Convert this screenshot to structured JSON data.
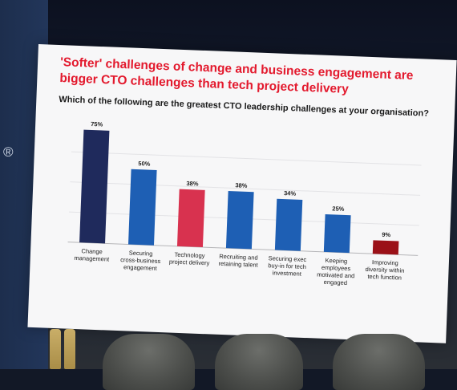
{
  "slide": {
    "headline": "'Softer' challenges of change and business engagement are bigger CTO challenges than tech project delivery",
    "question": "Which of the following are the greatest CTO leadership challenges at your organisation?",
    "side_mark": "®"
  },
  "chart_data": {
    "type": "bar",
    "title": "Which of the following are the greatest CTO leadership challenges at your organisation?",
    "xlabel": "",
    "ylabel": "",
    "ylim": [
      0,
      80
    ],
    "grid": true,
    "categories": [
      [
        "Change",
        "management"
      ],
      [
        "Securing",
        "cross-business",
        "engagement"
      ],
      [
        "Technology",
        "project delivery"
      ],
      [
        "Recruiting and",
        "retaining talent"
      ],
      [
        "Securing exec",
        "buy-in for tech",
        "investment"
      ],
      [
        "Keeping",
        "employees",
        "motivated and",
        "engaged"
      ],
      [
        "Improving",
        "diversity within",
        "tech function"
      ]
    ],
    "values": [
      75,
      50,
      38,
      38,
      34,
      25,
      9
    ],
    "data_labels": [
      "75%",
      "50%",
      "38%",
      "38%",
      "34%",
      "25%",
      "9%"
    ],
    "colors": [
      "#1f2a5c",
      "#1e5fb4",
      "#d8324f",
      "#1e5fb4",
      "#1e5fb4",
      "#1e5fb4",
      "#9b1118"
    ]
  }
}
